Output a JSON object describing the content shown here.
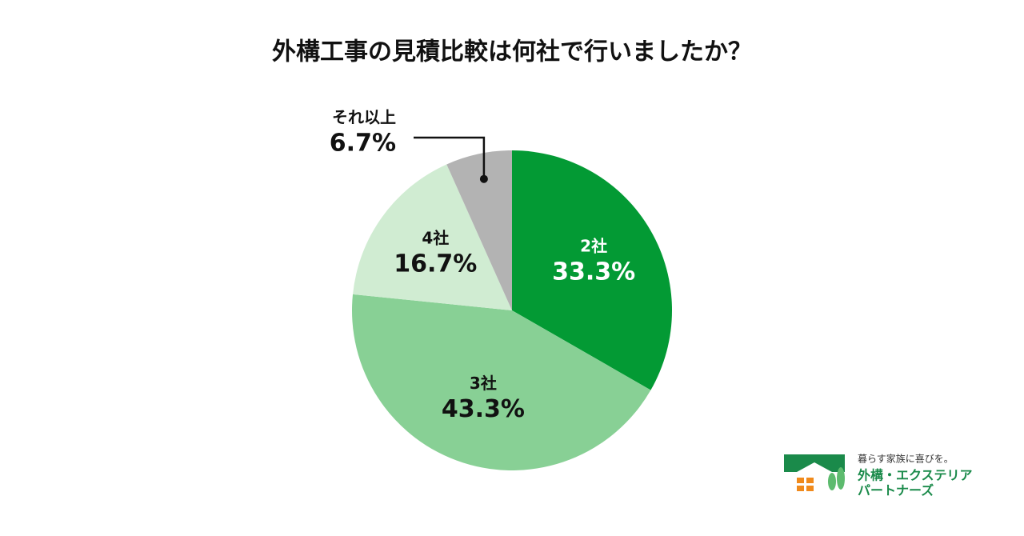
{
  "chart_data": {
    "type": "pie",
    "title": "外構工事の見積比較は何社で行いましたか？",
    "categories": [
      "2社",
      "3社",
      "4社",
      "それ以上"
    ],
    "values": [
      33.3,
      43.3,
      16.7,
      6.7
    ],
    "value_labels": [
      "33.3%",
      "43.3%",
      "16.7%",
      "6.7%"
    ],
    "colors": [
      "#039a34",
      "#88d095",
      "#d0ecd2",
      "#b3b3b3"
    ]
  },
  "logo": {
    "tagline": "暮らす家族に喜びを。",
    "name_line1": "外構・エクステリア",
    "name_line2": "パートナーズ"
  }
}
